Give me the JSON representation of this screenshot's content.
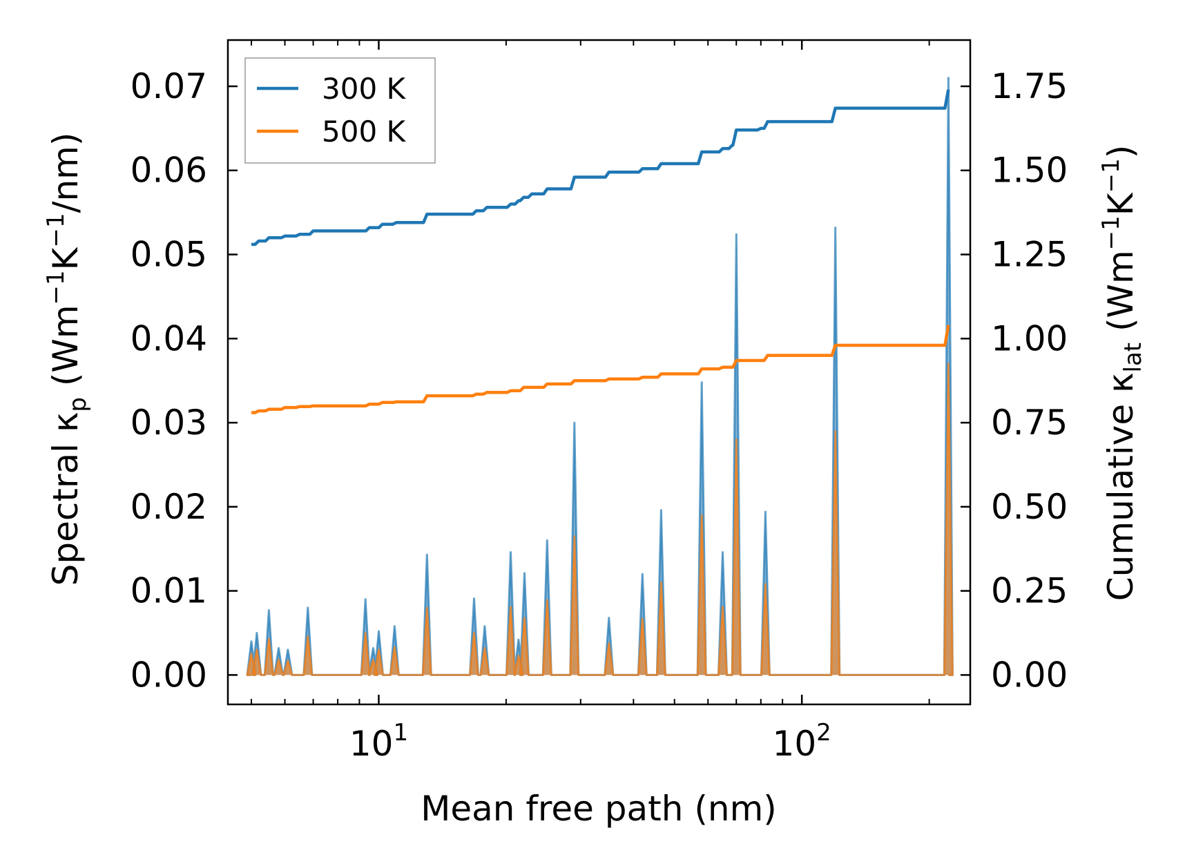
{
  "chart_data": {
    "type": "line",
    "xscale": "log",
    "xlim": [
      4.4,
      250
    ],
    "ylim_left": [
      -0.0035,
      0.0755
    ],
    "ylim_right": [
      -0.0875,
      1.8875
    ],
    "xlabel": "Mean free path (nm)",
    "ylabel_left": {
      "prefix": "Spectral κ",
      "sub": "p",
      "unit_start": " (Wm",
      "exp1": "−1",
      "unit_mid": "K",
      "exp2": "−1",
      "unit_end": "/nm)"
    },
    "ylabel_right": {
      "prefix": "Cumulative κ",
      "sub": "lat",
      "unit_start": " (Wm",
      "exp1": "−1",
      "unit_mid": "K",
      "exp2": "−1",
      "unit_end": ")"
    },
    "x_ticks": [
      {
        "value": 10,
        "base": "10",
        "exp": "1"
      },
      {
        "value": 100,
        "base": "10",
        "exp": "2"
      }
    ],
    "y_left_ticks": [
      0.0,
      0.01,
      0.02,
      0.03,
      0.04,
      0.05,
      0.06,
      0.07
    ],
    "y_left_tick_labels": [
      "0.00",
      "0.01",
      "0.02",
      "0.03",
      "0.04",
      "0.05",
      "0.06",
      "0.07"
    ],
    "y_right_ticks": [
      0.0,
      0.25,
      0.5,
      0.75,
      1.0,
      1.25,
      1.5,
      1.75
    ],
    "y_right_tick_labels": [
      "0.00",
      "0.25",
      "0.50",
      "0.75",
      "1.00",
      "1.25",
      "1.50",
      "1.75"
    ],
    "legend": {
      "position": "upper-left",
      "entries": [
        {
          "label": "300 K",
          "color": "#1f77b4"
        },
        {
          "label": "500 K",
          "color": "#ff7f0e"
        }
      ]
    },
    "series": [
      {
        "name": "300 K",
        "color": "#1f77b4",
        "spectral_peaks": [
          [
            5.0,
            0.004
          ],
          [
            5.15,
            0.005
          ],
          [
            5.5,
            0.0077
          ],
          [
            5.8,
            0.0032
          ],
          [
            6.1,
            0.003
          ],
          [
            6.8,
            0.008
          ],
          [
            9.3,
            0.009
          ],
          [
            9.7,
            0.0032
          ],
          [
            10.0,
            0.0052
          ],
          [
            10.9,
            0.0058
          ],
          [
            13.0,
            0.0143
          ],
          [
            16.8,
            0.0091
          ],
          [
            17.8,
            0.0058
          ],
          [
            20.5,
            0.0146
          ],
          [
            21.4,
            0.0042
          ],
          [
            22.1,
            0.0121
          ],
          [
            25.0,
            0.016
          ],
          [
            29.0,
            0.03
          ],
          [
            35.0,
            0.0068
          ],
          [
            42.0,
            0.012
          ],
          [
            46.5,
            0.0196
          ],
          [
            58.0,
            0.0348
          ],
          [
            65.0,
            0.0146
          ],
          [
            70.0,
            0.0524
          ],
          [
            82.0,
            0.0194
          ],
          [
            120.0,
            0.0532
          ],
          [
            222.0,
            0.071
          ]
        ],
        "cumulative_steps": [
          [
            5.0,
            1.28
          ],
          [
            5.2,
            1.29
          ],
          [
            5.5,
            1.3
          ],
          [
            6.0,
            1.305
          ],
          [
            6.5,
            1.31
          ],
          [
            7.0,
            1.32
          ],
          [
            9.5,
            1.33
          ],
          [
            10.2,
            1.34
          ],
          [
            11.0,
            1.345
          ],
          [
            13.0,
            1.37
          ],
          [
            17.0,
            1.38
          ],
          [
            18.0,
            1.39
          ],
          [
            20.5,
            1.4
          ],
          [
            21.4,
            1.41
          ],
          [
            22.0,
            1.42
          ],
          [
            23.0,
            1.43
          ],
          [
            25.0,
            1.445
          ],
          [
            29.0,
            1.48
          ],
          [
            35.0,
            1.495
          ],
          [
            42.0,
            1.505
          ],
          [
            46.5,
            1.52
          ],
          [
            58.0,
            1.555
          ],
          [
            65.0,
            1.565
          ],
          [
            68.5,
            1.575
          ],
          [
            70.0,
            1.62
          ],
          [
            80.0,
            1.625
          ],
          [
            83.0,
            1.645
          ],
          [
            120.0,
            1.685
          ],
          [
            222.0,
            1.74
          ]
        ]
      },
      {
        "name": "500 K",
        "color": "#ff7f0e",
        "spectral_peaks": [
          [
            5.0,
            0.0025
          ],
          [
            5.15,
            0.003
          ],
          [
            5.5,
            0.0043
          ],
          [
            5.8,
            0.0018
          ],
          [
            6.1,
            0.0017
          ],
          [
            6.8,
            0.0046
          ],
          [
            9.3,
            0.005
          ],
          [
            9.7,
            0.0018
          ],
          [
            10.0,
            0.003
          ],
          [
            10.9,
            0.0033
          ],
          [
            13.0,
            0.008
          ],
          [
            16.8,
            0.005
          ],
          [
            17.8,
            0.0032
          ],
          [
            20.5,
            0.0081
          ],
          [
            21.4,
            0.0023
          ],
          [
            22.1,
            0.0068
          ],
          [
            25.0,
            0.0089
          ],
          [
            29.0,
            0.0165
          ],
          [
            35.0,
            0.0038
          ],
          [
            42.0,
            0.0067
          ],
          [
            46.5,
            0.011
          ],
          [
            58.0,
            0.019
          ],
          [
            65.0,
            0.0081
          ],
          [
            70.0,
            0.028
          ],
          [
            82.0,
            0.0108
          ],
          [
            120.0,
            0.029
          ],
          [
            222.0,
            0.037
          ]
        ],
        "cumulative_steps": [
          [
            5.0,
            0.78
          ],
          [
            5.2,
            0.785
          ],
          [
            5.5,
            0.79
          ],
          [
            6.0,
            0.795
          ],
          [
            6.5,
            0.798
          ],
          [
            7.0,
            0.8
          ],
          [
            9.5,
            0.805
          ],
          [
            10.2,
            0.81
          ],
          [
            11.0,
            0.812
          ],
          [
            13.0,
            0.83
          ],
          [
            17.0,
            0.835
          ],
          [
            18.0,
            0.84
          ],
          [
            20.5,
            0.845
          ],
          [
            22.0,
            0.855
          ],
          [
            25.0,
            0.865
          ],
          [
            29.0,
            0.875
          ],
          [
            35.0,
            0.88
          ],
          [
            42.0,
            0.885
          ],
          [
            46.5,
            0.895
          ],
          [
            58.0,
            0.91
          ],
          [
            65.0,
            0.915
          ],
          [
            70.0,
            0.935
          ],
          [
            83.0,
            0.95
          ],
          [
            120.0,
            0.98
          ],
          [
            222.0,
            1.04
          ]
        ]
      }
    ]
  }
}
